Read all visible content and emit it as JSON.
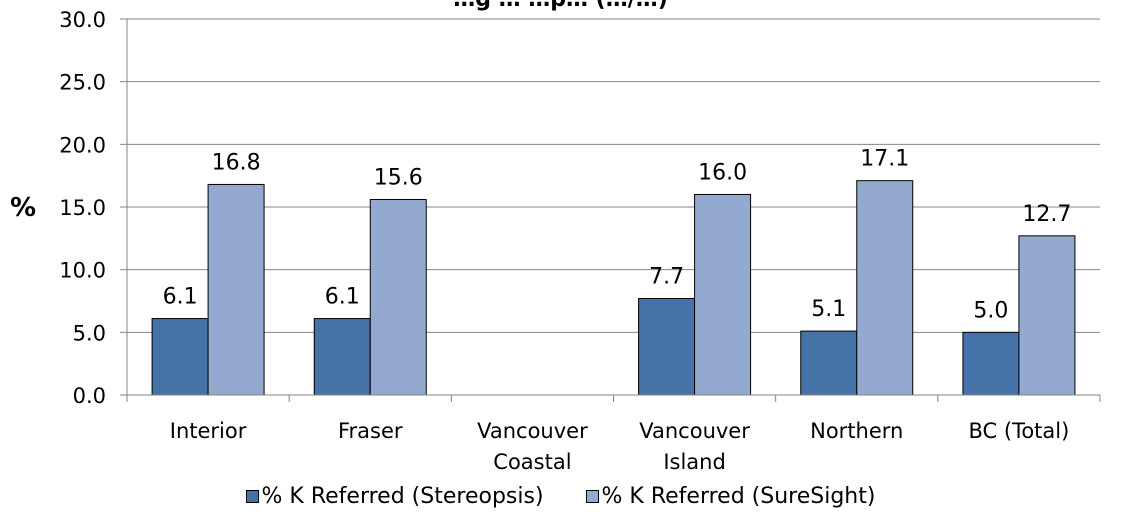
{
  "chart_data": {
    "type": "bar",
    "title": "…g … …p… (…/…)",
    "ylabel": "%",
    "ylim": [
      0,
      30
    ],
    "yticks": [
      "0.0",
      "5.0",
      "10.0",
      "15.0",
      "20.0",
      "25.0",
      "30.0"
    ],
    "categories": [
      [
        "Interior"
      ],
      [
        "Fraser"
      ],
      [
        "Vancouver",
        "Coastal"
      ],
      [
        "Vancouver",
        "Island"
      ],
      [
        "Northern"
      ],
      [
        "BC (Total)"
      ]
    ],
    "series": [
      {
        "name": "% K Referred (Stereopsis)",
        "color": "#4572A7",
        "values": [
          6.1,
          6.1,
          null,
          7.7,
          5.1,
          5.0
        ],
        "labels": [
          "6.1",
          "6.1",
          null,
          "7.7",
          "5.1",
          "5.0"
        ]
      },
      {
        "name": "% K Referred (SureSight)",
        "color": "#93A9CF",
        "values": [
          16.8,
          15.6,
          null,
          16.0,
          17.1,
          12.7
        ],
        "labels": [
          "16.8",
          "15.6",
          null,
          "16.0",
          "17.1",
          "12.7"
        ]
      }
    ],
    "grid": true,
    "legend": "bottom"
  }
}
